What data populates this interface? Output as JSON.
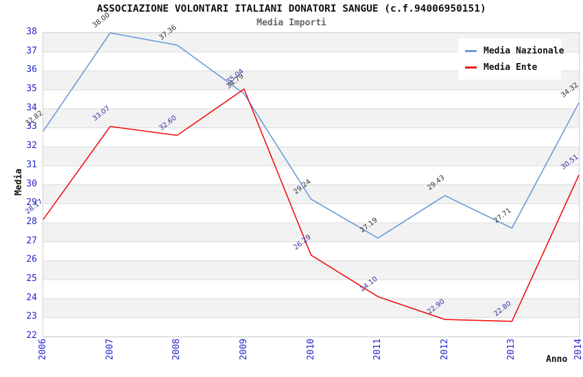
{
  "header": {
    "title": "ASSOCIAZIONE VOLONTARI ITALIANI DONATORI SANGUE (c.f.94006950151)",
    "subtitle": "Media Importi"
  },
  "chart_data": {
    "type": "line",
    "x": [
      2006,
      2007,
      2008,
      2009,
      2010,
      2011,
      2012,
      2013,
      2014
    ],
    "series": [
      {
        "name": "Media Nazionale",
        "color": "#6a9ad8",
        "label_color": "#303030",
        "values": [
          32.82,
          38.0,
          37.36,
          34.79,
          29.24,
          27.19,
          29.43,
          27.71,
          34.32
        ]
      },
      {
        "name": "Media Ente",
        "color": "#ee1111",
        "label_color": "#3333a0",
        "values": [
          28.17,
          33.07,
          32.6,
          35.04,
          26.29,
          24.1,
          22.9,
          22.8,
          30.51
        ]
      }
    ],
    "xlabel": "Anno",
    "ylabel": "Media",
    "ylim": [
      22,
      38
    ],
    "y_tick_step": 1,
    "x_tick_rotation": -90,
    "point_label_decimals": 2,
    "legend_position": "top-right",
    "grid": "horizontal-bands",
    "band_color": "#f2f2f2",
    "gridline_color": "#dcdcdc",
    "tick_label_color": "#2424cc",
    "plot_border_color": "#cfcfcf"
  }
}
